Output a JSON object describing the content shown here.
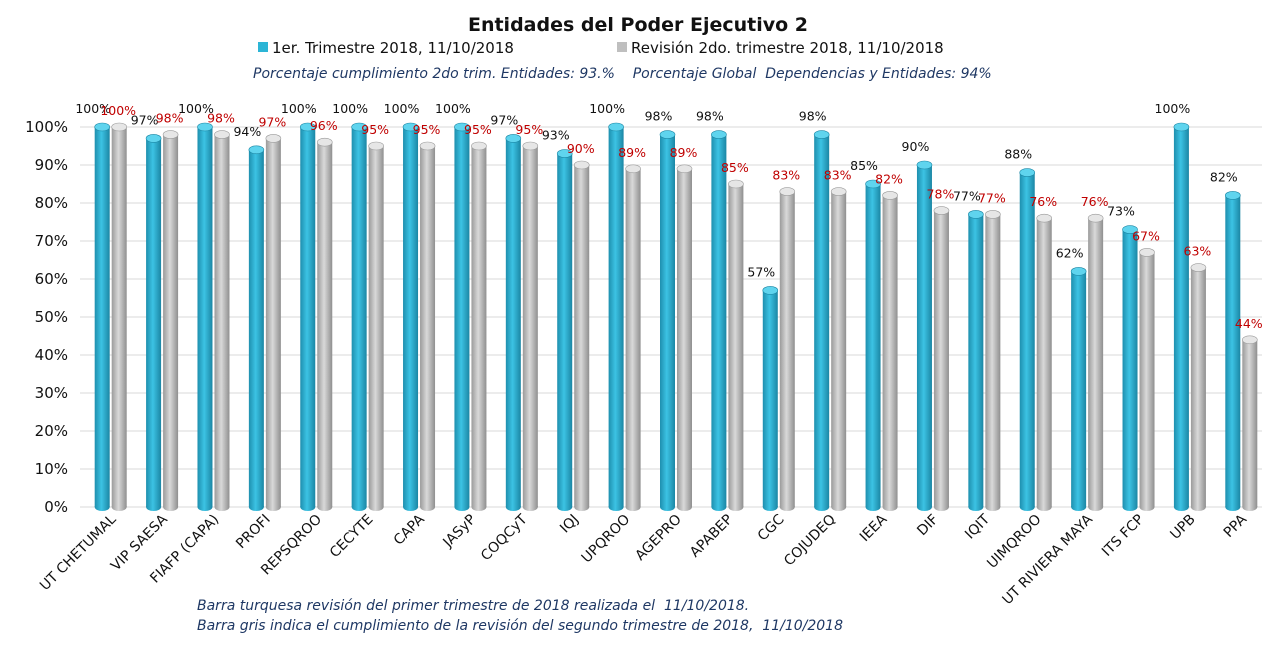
{
  "chart_data": {
    "type": "bar",
    "title": "Entidades del Poder Ejecutivo 2",
    "subtitle": "Porcentaje cumplimiento 2do trim. Entidades: 93.%    Porcentaje Global  Dependencias y Entidades: 94%",
    "legend_placement": "top",
    "ylim": [
      0,
      100
    ],
    "yticks": [
      "0%",
      "10%",
      "20%",
      "30%",
      "40%",
      "50%",
      "60%",
      "70%",
      "80%",
      "90%",
      "100%"
    ],
    "grid": true,
    "categories": [
      "UT CHETUMAL",
      "VIP SAESA",
      "FIAFP (CAPA)",
      "PROFI",
      "REPSQROO",
      "CECYTE",
      "CAPA",
      "JASyP",
      "COQCyT",
      "IQJ",
      "UPQROO",
      "AGEPRO",
      "APABEP",
      "CGC",
      "COJUDEQ",
      "IEEA",
      "DIF",
      "IQIT",
      "UIMQROO",
      "UT RIVIERA MAYA",
      "ITS FCP",
      "UPB",
      "PPA"
    ],
    "series": [
      {
        "name": "1er. Trimestre 2018, 11/10/2018",
        "color": "#2cb5d6",
        "values": [
          100,
          97,
          100,
          94,
          100,
          100,
          100,
          100,
          97,
          93,
          100,
          98,
          98,
          57,
          98,
          85,
          90,
          77,
          88,
          62,
          73,
          100,
          82
        ]
      },
      {
        "name": "Revisión 2do. trimestre 2018, 11/10/2018",
        "color": "#bfbfbf",
        "values": [
          100,
          98,
          98,
          97,
          96,
          95,
          95,
          95,
          95,
          90,
          89,
          89,
          85,
          83,
          83,
          82,
          78,
          77,
          76,
          76,
          67,
          63,
          44
        ]
      }
    ],
    "notes": [
      "Barra turquesa revisión del primer trimestre de 2018 realizada el  11/10/2018.",
      "Barra gris indica el cumplimiento de la revisión del segundo trimestre de 2018,  11/10/2018"
    ]
  }
}
